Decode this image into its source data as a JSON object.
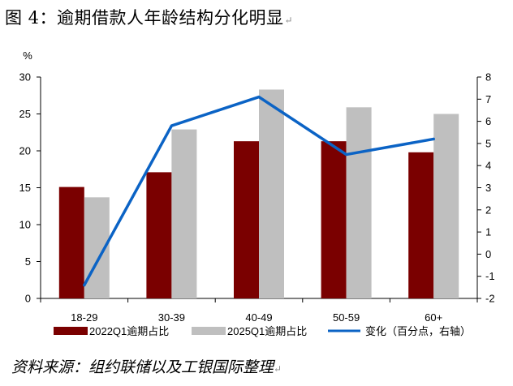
{
  "title": "图 4：逾期借款人年龄结构分化明显",
  "source": "资料来源：组约联储以及工银国际整理",
  "chart_data": {
    "type": "bar",
    "categories": [
      "18-29",
      "30-39",
      "40-49",
      "50-59",
      "60+"
    ],
    "series": [
      {
        "name": "2022Q1逾期占比",
        "type": "bar",
        "axis": "left",
        "color": "#7a0000",
        "values": [
          15.1,
          17.1,
          21.3,
          21.3,
          19.8
        ]
      },
      {
        "name": "2025Q1逾期占比",
        "type": "bar",
        "axis": "left",
        "color": "#bfbfbf",
        "values": [
          13.7,
          22.9,
          28.3,
          25.9,
          25.0
        ]
      },
      {
        "name": "变化（百分点，右轴）",
        "type": "line",
        "axis": "right",
        "color": "#0b63c5",
        "values": [
          -1.4,
          5.8,
          7.1,
          4.5,
          5.2
        ]
      }
    ],
    "ylabel": "%",
    "ylim": [
      0,
      30
    ],
    "yticks": [
      "0",
      "5",
      "10",
      "15",
      "20",
      "25",
      "30"
    ],
    "y2lim": [
      -2,
      8
    ],
    "y2ticks": [
      "-2",
      "-1",
      "0",
      "1",
      "2",
      "3",
      "4",
      "5",
      "6",
      "7",
      "8"
    ],
    "grid": false,
    "legend_position": "bottom"
  }
}
